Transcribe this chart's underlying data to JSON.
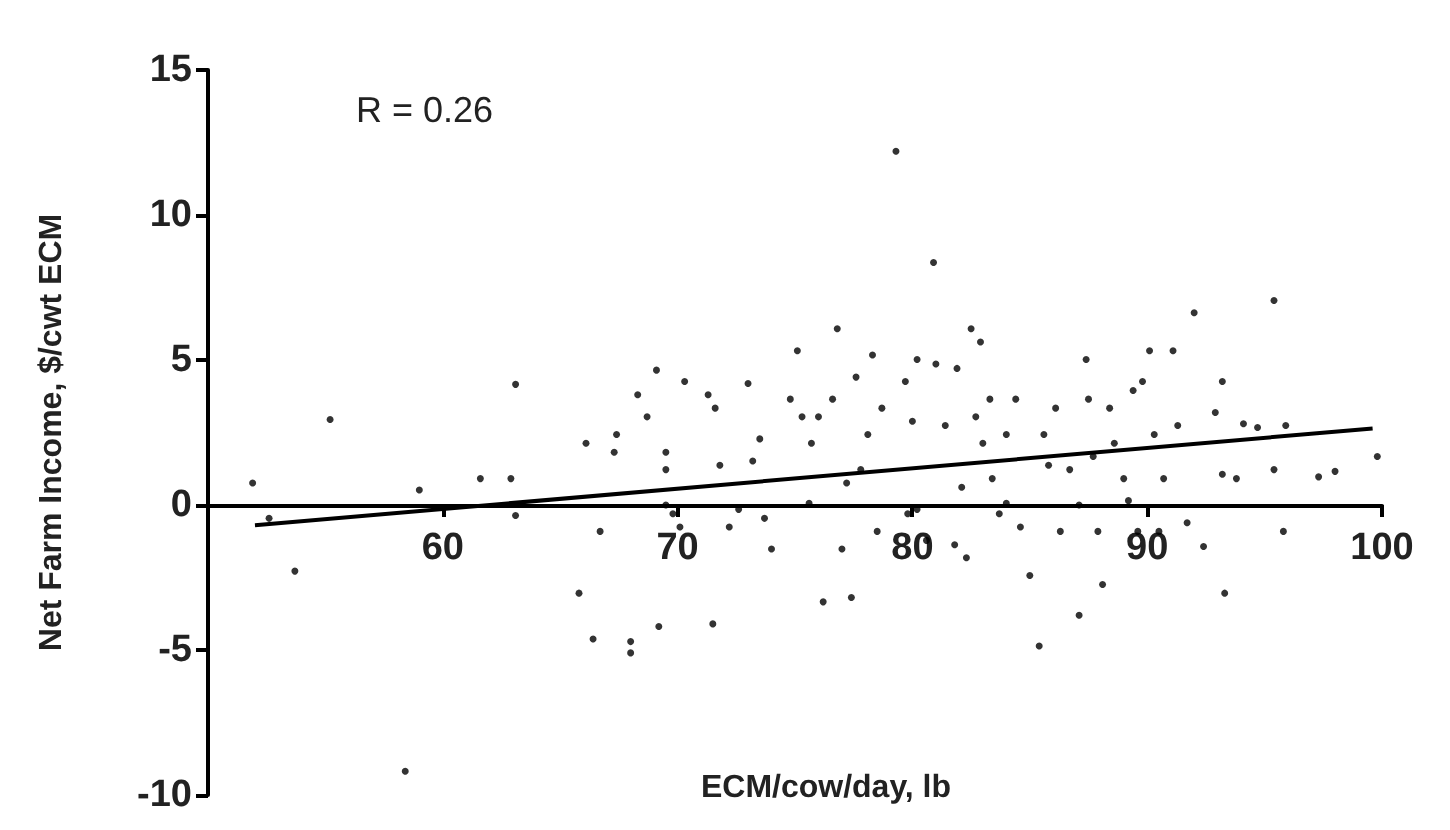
{
  "chart_data": {
    "type": "scatter",
    "xlabel": "ECM/cow/day, lb",
    "ylabel": "Net Farm Income, $/cwt ECM",
    "annotations": [
      "R = 0.26"
    ],
    "xlim": [
      50,
      100
    ],
    "xticks": [
      60,
      70,
      80,
      90,
      100
    ],
    "ylim": [
      -10,
      15
    ],
    "yticks": [
      -10,
      -5,
      0,
      5,
      10,
      15
    ],
    "grid": false,
    "marker": "circle",
    "series": [
      {
        "color": "#000000",
        "x": [
          51.9,
          52.6,
          53.7,
          55.2,
          58.4,
          59.0,
          61.6,
          62.9,
          63.1,
          63.1,
          65.8,
          66.1,
          66.4,
          66.7,
          67.3,
          67.4,
          68.0,
          68.0,
          68.3,
          68.7,
          69.1,
          69.2,
          69.5,
          69.5,
          69.8,
          70.1,
          70.3,
          71.3,
          71.5,
          71.6,
          71.8,
          72.2,
          73.0,
          73.2,
          73.5,
          73.7,
          74.0,
          74.8,
          75.1,
          75.3,
          75.7,
          76.0,
          76.2,
          76.6,
          76.8,
          77.0,
          77.2,
          77.4,
          77.6,
          77.8,
          78.1,
          78.3,
          78.5,
          78.7,
          79.3,
          79.7,
          79.8,
          80.0,
          80.2,
          80.6,
          80.9,
          81.0,
          81.4,
          81.8,
          81.9,
          82.1,
          82.3,
          82.5,
          82.7,
          82.9,
          83.0,
          83.3,
          83.4,
          83.7,
          84.0,
          84.4,
          84.6,
          85.0,
          85.4,
          85.6,
          85.8,
          86.1,
          86.3,
          86.7,
          87.1,
          87.4,
          87.5,
          87.7,
          87.9,
          88.1,
          88.4,
          88.6,
          89.0,
          89.4,
          89.6,
          89.8,
          90.1,
          90.3,
          90.5,
          90.7,
          91.1,
          91.3,
          91.7,
          92.0,
          92.4,
          92.9,
          93.2,
          93.2,
          93.3,
          93.8,
          94.1,
          94.7,
          95.4,
          95.4,
          95.8,
          95.9,
          97.3,
          98.0,
          99.8,
          69.5,
          72.6,
          75.6,
          80.2,
          84.0,
          87.1,
          89.2
        ],
        "values": [
          0.76,
          -0.46,
          -2.28,
          2.95,
          -9.18,
          0.52,
          0.91,
          0.91,
          4.16,
          -0.36,
          -3.04,
          2.13,
          -4.62,
          -0.91,
          1.82,
          2.43,
          -4.71,
          -5.1,
          3.8,
          3.04,
          4.65,
          -4.19,
          1.82,
          1.22,
          -0.3,
          -0.76,
          4.26,
          3.8,
          -4.1,
          3.34,
          1.37,
          -0.76,
          4.19,
          1.52,
          2.28,
          -0.46,
          -1.52,
          3.65,
          5.32,
          3.04,
          2.13,
          3.04,
          -3.34,
          3.65,
          6.08,
          -1.52,
          0.76,
          -3.19,
          4.41,
          1.22,
          2.43,
          5.17,
          -0.91,
          3.34,
          12.2,
          4.26,
          -0.3,
          2.89,
          5.02,
          -1.22,
          8.36,
          4.86,
          2.74,
          -1.37,
          4.71,
          0.61,
          -1.82,
          6.08,
          3.04,
          5.62,
          2.13,
          3.65,
          0.91,
          -0.3,
          2.43,
          3.65,
          -0.76,
          -2.43,
          -4.86,
          2.43,
          1.37,
          3.34,
          -0.91,
          1.22,
          -3.8,
          5.02,
          3.65,
          1.67,
          -0.91,
          -2.74,
          3.34,
          2.13,
          0.91,
          3.95,
          -0.91,
          4.26,
          5.32,
          2.43,
          -0.91,
          0.91,
          5.32,
          2.74,
          -0.61,
          6.63,
          -1.43,
          3.19,
          4.26,
          1.06,
          -3.04,
          0.91,
          2.8,
          2.67,
          7.05,
          1.22,
          -0.91,
          2.74,
          0.97,
          1.16,
          1.67,
          0,
          -0.15,
          0.06,
          -0.15,
          0.06,
          0,
          0.15
        ]
      },
      {
        "type": "line",
        "color": "#000000",
        "marker": "none",
        "line_style": "solid",
        "x": [
          52,
          99.6
        ],
        "values": [
          -0.7,
          2.64
        ]
      }
    ]
  }
}
